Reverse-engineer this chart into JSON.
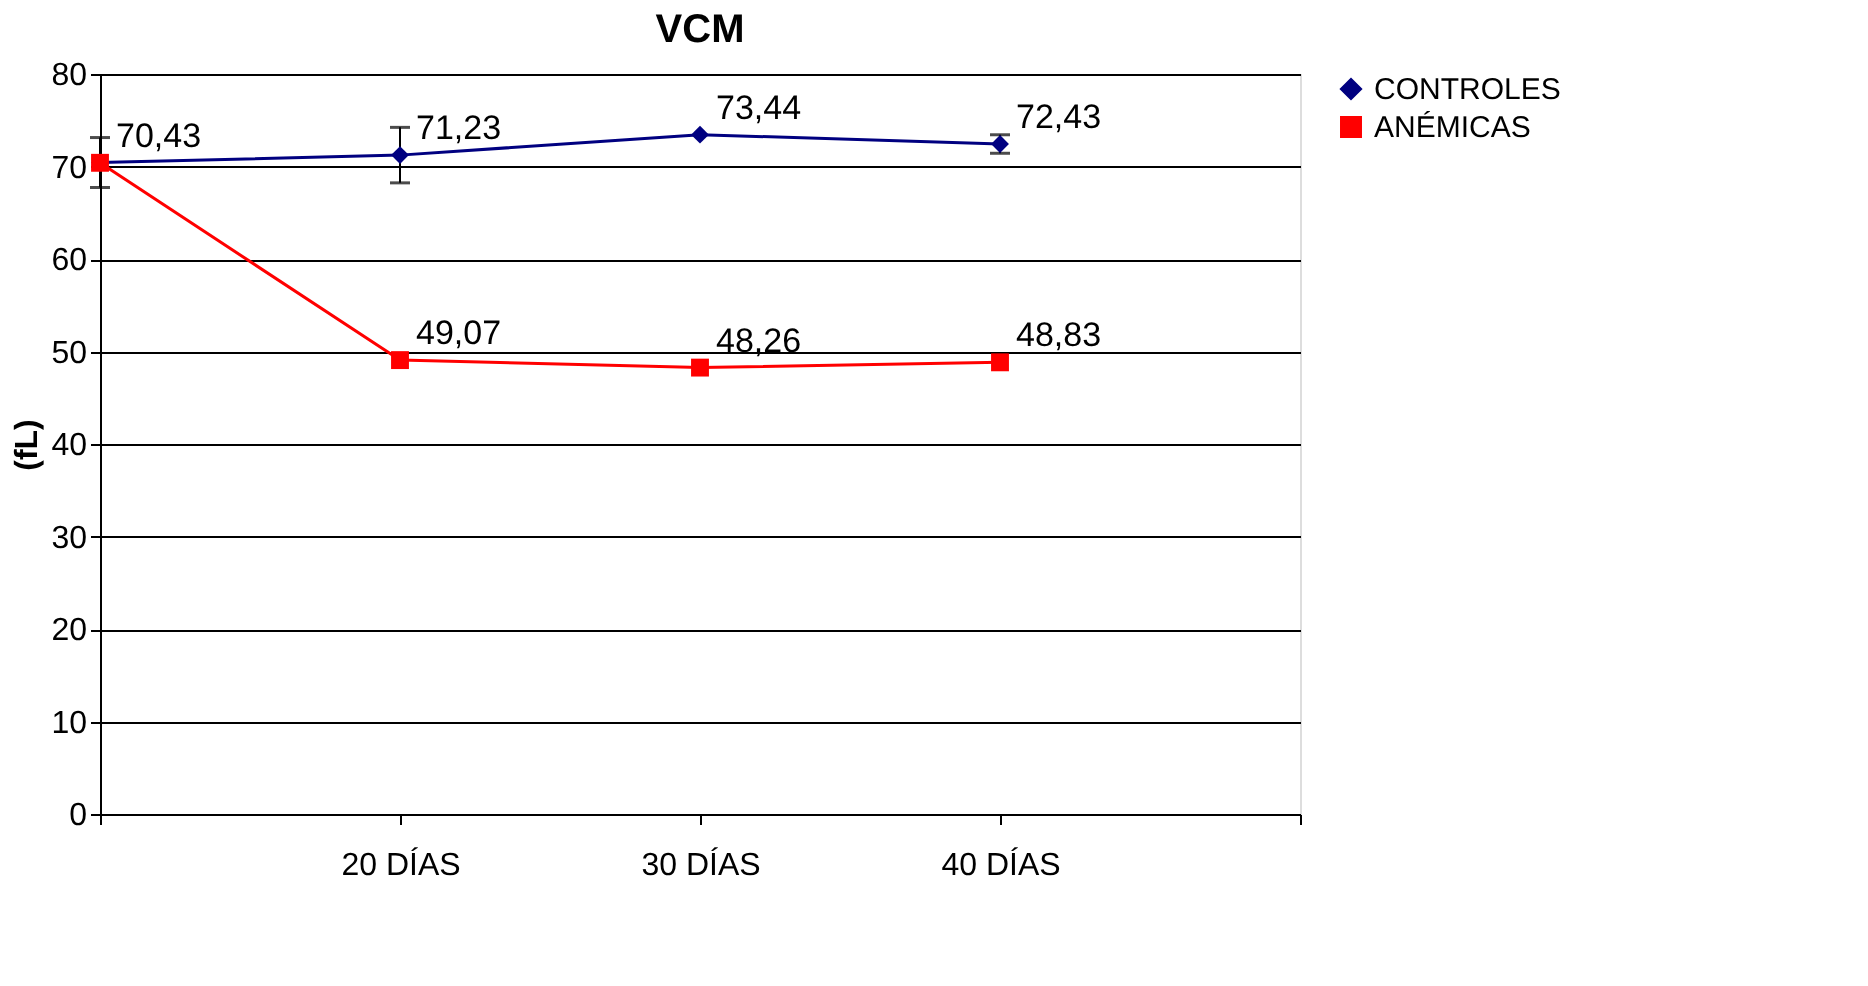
{
  "chart_data": {
    "type": "line",
    "title": "VCM",
    "ylabel": "(fL)",
    "categories": [
      null,
      "20 DÍAS",
      "30 DÍAS",
      "40 DÍAS",
      null
    ],
    "ylim": [
      0,
      80
    ],
    "yticks": [
      0,
      10,
      20,
      30,
      40,
      50,
      60,
      70,
      80
    ],
    "grid": "y",
    "legend": "right",
    "line_style": "solid",
    "series": [
      {
        "name": "CONTROLES",
        "color": "#000080",
        "marker": "diamond",
        "values": [
          70.43,
          71.23,
          73.44,
          72.43,
          null
        ],
        "errors": [
          2.7,
          3,
          null,
          1,
          null
        ],
        "value_labels": [
          "70,43",
          "71,23",
          "73,44",
          "72,43",
          null
        ]
      },
      {
        "name": "ANÉMICAS",
        "color": "#ff0000",
        "marker": "square",
        "values": [
          70.4,
          49.07,
          48.26,
          48.83,
          null
        ],
        "value_labels": [
          null,
          "49,07",
          "48,26",
          "48,83",
          null
        ]
      }
    ]
  }
}
